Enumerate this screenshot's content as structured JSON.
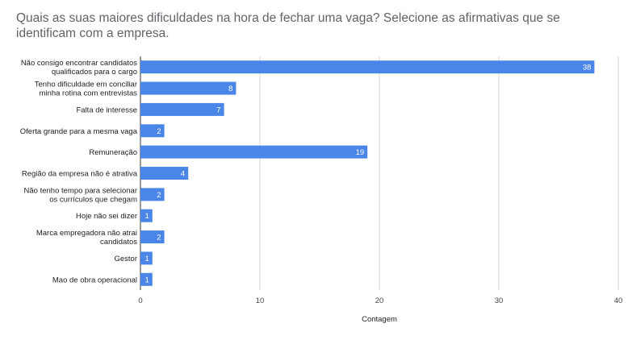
{
  "chart_data": {
    "type": "bar",
    "orientation": "horizontal",
    "title": "Quais as suas maiores dificuldades na hora de fechar uma vaga? Selecione as afirmativas que se identificam com a empresa.",
    "xlabel": "Contagem",
    "ylabel": "",
    "xlim": [
      0,
      40
    ],
    "xticks": [
      0,
      10,
      20,
      30,
      40
    ],
    "grid": true,
    "legend": "none",
    "bar_color": "#4a86e8",
    "categories": [
      [
        "Não consigo encontrar candidatos",
        "qualificados para o cargo"
      ],
      [
        "Tenho dificuldade em conciliar",
        "minha rotina com entrevistas"
      ],
      [
        "Falta de interesse"
      ],
      [
        "Oferta grande para a mesma vaga"
      ],
      [
        "Remuneração"
      ],
      [
        "Região da empresa não é atrativa"
      ],
      [
        "Não tenho tempo para selecionar",
        "os currículos que chegam"
      ],
      [
        "Hoje não sei dizer"
      ],
      [
        "Marca empregadora não atrai",
        "candidatos"
      ],
      [
        "Gestor"
      ],
      [
        "Mao de obra operacional"
      ]
    ],
    "values": [
      38,
      8,
      7,
      2,
      19,
      4,
      2,
      1,
      2,
      1,
      1
    ]
  }
}
